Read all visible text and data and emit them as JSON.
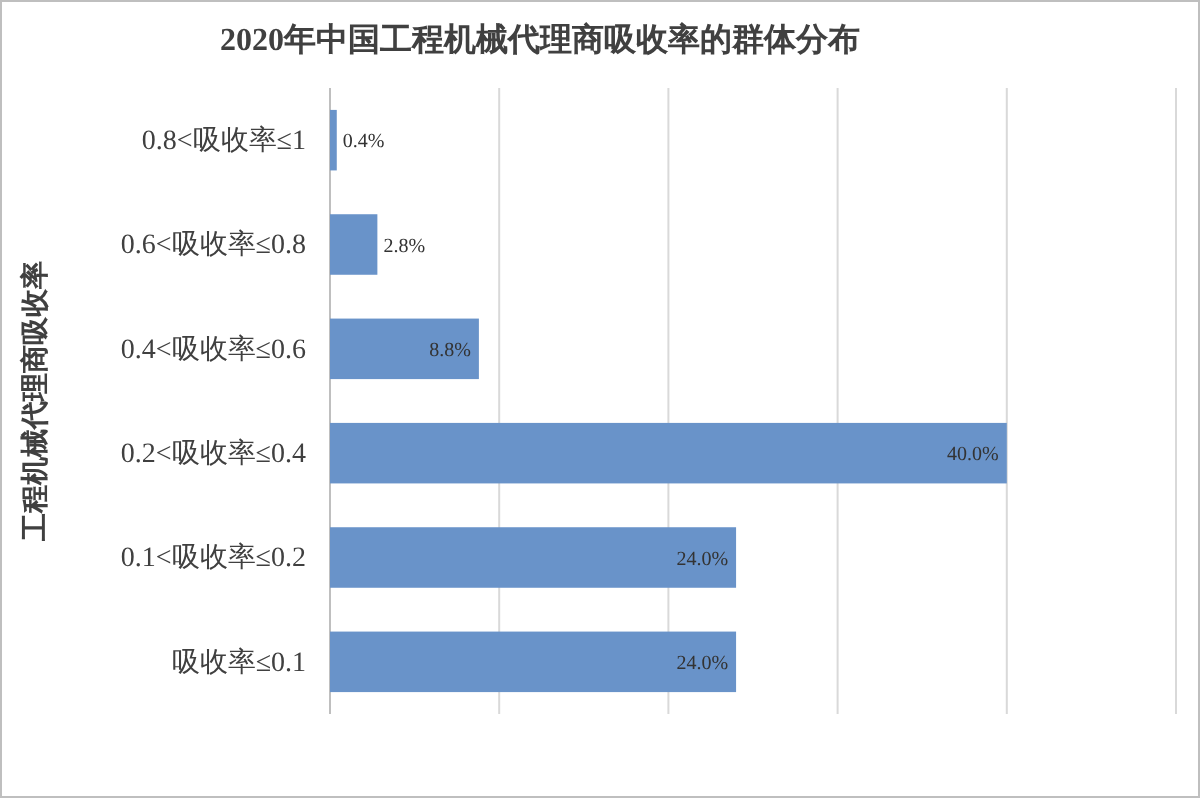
{
  "chart_data": {
    "type": "bar",
    "orientation": "horizontal",
    "title": "2020年中国工程机械代理商吸收率的群体分布",
    "ylabel": "工程机械代理商吸收率",
    "categories": [
      "0.8<吸收率≤1",
      "0.6<吸收率≤0.8",
      "0.4<吸收率≤0.6",
      "0.2<吸收率≤0.4",
      "0.1<吸收率≤0.2",
      "吸收率≤0.1"
    ],
    "values": [
      0.4,
      2.8,
      8.8,
      40.0,
      24.0,
      24.0
    ],
    "value_labels": [
      "0.4%",
      "2.8%",
      "8.8%",
      "40.0%",
      "24.0%",
      "24.0%"
    ],
    "color": "#6993c9",
    "xlim": [
      0,
      50
    ],
    "xticks": [
      {
        "value": 0,
        "label": null
      },
      {
        "value": 10,
        "label": null
      },
      {
        "value": 20,
        "label": null
      },
      {
        "value": 30,
        "label": null
      },
      {
        "value": 40,
        "label": null
      },
      {
        "value": 50,
        "label": null
      }
    ],
    "tick_labels": "y",
    "grid": "x"
  }
}
